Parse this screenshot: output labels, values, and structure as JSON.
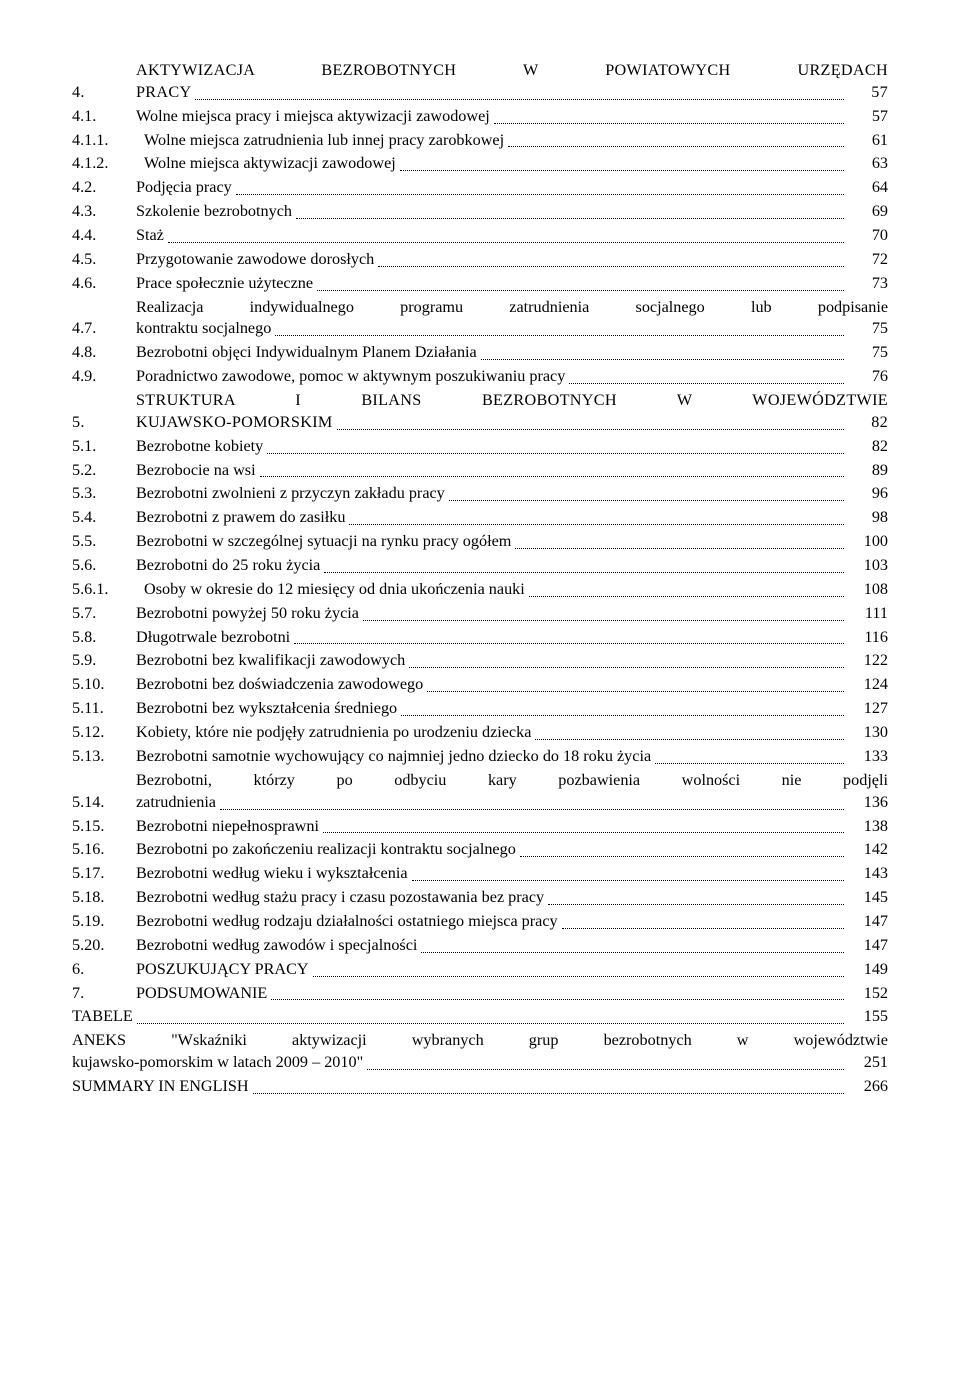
{
  "toc": [
    {
      "num": "4.",
      "numClass": "w1",
      "title_lines": [
        "AKTYWIZACJA BEZROBOTNYCH W POWIATOWYCH URZĘDACH",
        "PRACY"
      ],
      "page": "57",
      "spaced": true
    },
    {
      "num": "4.1.",
      "numClass": "w2",
      "title": "Wolne miejsca pracy i miejsca aktywizacji zawodowej",
      "page": "57"
    },
    {
      "num": "4.1.1.",
      "numClass": "w3",
      "title": "Wolne miejsca zatrudnienia lub innej pracy zarobkowej",
      "page": "61"
    },
    {
      "num": "4.1.2.",
      "numClass": "w3",
      "title": "Wolne miejsca aktywizacji zawodowej",
      "page": "63"
    },
    {
      "num": "4.2.",
      "numClass": "w2",
      "title": "Podjęcia pracy",
      "page": "64"
    },
    {
      "num": "4.3.",
      "numClass": "w2",
      "title": "Szkolenie bezrobotnych",
      "page": "69"
    },
    {
      "num": "4.4.",
      "numClass": "w2",
      "title": "Staż",
      "page": "70"
    },
    {
      "num": "4.5.",
      "numClass": "w2",
      "title": "Przygotowanie zawodowe dorosłych",
      "page": "72"
    },
    {
      "num": "4.6.",
      "numClass": "w2",
      "title": "Prace społecznie użyteczne",
      "page": "73"
    },
    {
      "num": "4.7.",
      "numClass": "w2",
      "title_lines": [
        "Realizacja indywidualnego programu zatrudnienia socjalnego lub podpisanie",
        "kontraktu socjalnego"
      ],
      "page": "75"
    },
    {
      "num": "4.8.",
      "numClass": "w2",
      "title": "Bezrobotni objęci Indywidualnym Planem Działania",
      "page": "75"
    },
    {
      "num": "4.9.",
      "numClass": "w2",
      "title": "Poradnictwo zawodowe, pomoc w aktywnym poszukiwaniu pracy",
      "page": "76"
    },
    {
      "num": "5.",
      "numClass": "w1",
      "title_lines": [
        "STRUKTURA I BILANS BEZROBOTNYCH W WOJEWÓDZTWIE",
        "KUJAWSKO-POMORSKIM"
      ],
      "page": "82",
      "spaced": true
    },
    {
      "num": "5.1.",
      "numClass": "w2",
      "title": "Bezrobotne kobiety",
      "page": "82"
    },
    {
      "num": "5.2.",
      "numClass": "w2",
      "title": "Bezrobocie na wsi",
      "page": "89"
    },
    {
      "num": "5.3.",
      "numClass": "w2",
      "title": "Bezrobotni zwolnieni z przyczyn zakładu pracy",
      "page": "96"
    },
    {
      "num": "5.4.",
      "numClass": "w2",
      "title": "Bezrobotni z prawem do zasiłku",
      "page": "98"
    },
    {
      "num": "5.5.",
      "numClass": "w2",
      "title": "Bezrobotni w szczególnej sytuacji na rynku pracy ogółem",
      "page": "100"
    },
    {
      "num": "5.6.",
      "numClass": "w2",
      "title": "Bezrobotni do 25 roku życia",
      "page": "103"
    },
    {
      "num": "5.6.1.",
      "numClass": "w3",
      "title": "Osoby w okresie do 12 miesięcy od dnia ukończenia nauki",
      "page": "108"
    },
    {
      "num": "5.7.",
      "numClass": "w2",
      "title": "Bezrobotni powyżej 50 roku życia",
      "page": "111"
    },
    {
      "num": "5.8.",
      "numClass": "w2",
      "title": "Długotrwale bezrobotni",
      "page": "116"
    },
    {
      "num": "5.9.",
      "numClass": "w2",
      "title": "Bezrobotni bez kwalifikacji zawodowych",
      "page": "122"
    },
    {
      "num": "5.10.",
      "numClass": "w2",
      "title": "Bezrobotni bez doświadczenia zawodowego",
      "page": "124"
    },
    {
      "num": "5.11.",
      "numClass": "w2",
      "title": "Bezrobotni bez wykształcenia średniego",
      "page": "127"
    },
    {
      "num": "5.12.",
      "numClass": "w2",
      "title": "Kobiety, które nie podjęły zatrudnienia po urodzeniu dziecka",
      "page": "130"
    },
    {
      "num": "5.13.",
      "numClass": "w2",
      "title": "Bezrobotni samotnie wychowujący co najmniej jedno dziecko do 18 roku życia",
      "page": "133"
    },
    {
      "num": "5.14.",
      "numClass": "w2",
      "title_lines": [
        "Bezrobotni, którzy po odbyciu kary pozbawienia wolności nie podjęli",
        "zatrudnienia"
      ],
      "page": "136"
    },
    {
      "num": "5.15.",
      "numClass": "w2",
      "title": "Bezrobotni niepełnosprawni",
      "page": "138"
    },
    {
      "num": "5.16.",
      "numClass": "w2",
      "title": "Bezrobotni po zakończeniu realizacji kontraktu socjalnego",
      "page": "142"
    },
    {
      "num": "5.17.",
      "numClass": "w2",
      "title": "Bezrobotni według wieku i wykształcenia",
      "page": "143"
    },
    {
      "num": "5.18.",
      "numClass": "w2",
      "title": "Bezrobotni według stażu pracy i czasu pozostawania bez pracy",
      "page": "145"
    },
    {
      "num": "5.19.",
      "numClass": "w2",
      "title": "Bezrobotni według rodzaju działalności ostatniego miejsca pracy",
      "page": "147"
    },
    {
      "num": "5.20.",
      "numClass": "w2",
      "title": "Bezrobotni według zawodów i specjalności",
      "page": "147"
    },
    {
      "num": "6.",
      "numClass": "w1",
      "title": "POSZUKUJĄCY PRACY",
      "page": "149"
    },
    {
      "num": "7.",
      "numClass": "w1",
      "title": "PODSUMOWANIE",
      "page": "152"
    },
    {
      "num": "",
      "numClass": "none",
      "title": "TABELE",
      "page": "155"
    },
    {
      "num": "",
      "numClass": "none",
      "title_lines": [
        "ANEKS \"Wskaźniki aktywizacji wybranych grup bezrobotnych w województwie",
        "kujawsko-pomorskim w latach 2009 – 2010\""
      ],
      "page": "251"
    },
    {
      "num": "",
      "numClass": "none",
      "title": "SUMMARY IN ENGLISH",
      "page": "266"
    }
  ]
}
